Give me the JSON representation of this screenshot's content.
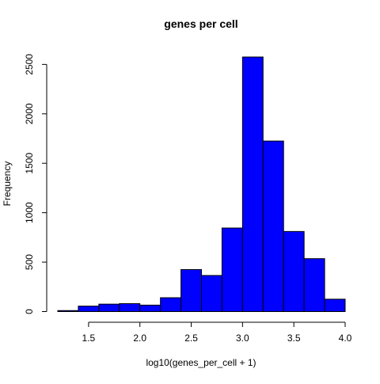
{
  "chart_data": {
    "type": "bar",
    "title": "genes per cell",
    "xlabel": "log10(genes_per_cell + 1)",
    "ylabel": "Frequency",
    "bin_edges": [
      1.2,
      1.4,
      1.6,
      1.8,
      2.0,
      2.2,
      2.4,
      2.6,
      2.8,
      3.0,
      3.2,
      3.4,
      3.6,
      3.8,
      4.0
    ],
    "values": [
      10,
      55,
      75,
      80,
      65,
      140,
      425,
      365,
      845,
      2575,
      1725,
      810,
      535,
      125
    ],
    "xlim": [
      1.2,
      4.0
    ],
    "ylim": [
      0,
      2575
    ],
    "x_ticks": [
      1.5,
      2.0,
      2.5,
      3.0,
      3.5,
      4.0
    ],
    "x_tick_labels": [
      "1.5",
      "2.0",
      "2.5",
      "3.0",
      "3.5",
      "4.0"
    ],
    "y_ticks": [
      0,
      500,
      1000,
      1500,
      2000,
      2500
    ],
    "y_tick_labels": [
      "0",
      "500",
      "1000",
      "1500",
      "2000",
      "2500"
    ],
    "bar_color": "#0000ff",
    "edge_color": "#000000",
    "grid": false,
    "legend": "none"
  }
}
